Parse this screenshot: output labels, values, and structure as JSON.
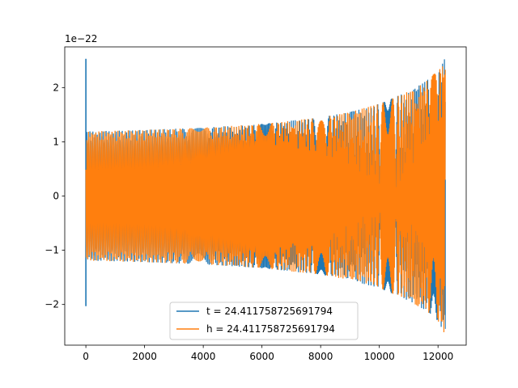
{
  "chart_data": {
    "type": "line",
    "title": "",
    "xlabel": "",
    "ylabel": "",
    "y_offset_text": "1e−22",
    "xlim": [
      -720,
      12960
    ],
    "ylim": [
      -2.75,
      2.75
    ],
    "x_ticks": [
      0,
      2000,
      4000,
      6000,
      8000,
      10000,
      12000
    ],
    "x_tick_labels": [
      "0",
      "2000",
      "4000",
      "6000",
      "8000",
      "10000",
      "12000"
    ],
    "y_ticks": [
      -2,
      -1,
      0,
      1,
      2
    ],
    "y_tick_labels": [
      "−2",
      "−1",
      "0",
      "1",
      "2"
    ],
    "grid": false,
    "legend_position": "lower-center",
    "series": [
      {
        "name": "t = 24.411758725691794",
        "color": "#1f77b4",
        "description_points": {
          "spike_x": 0,
          "spike_ymax": 2.53,
          "spike_ymin": -2.03
        }
      },
      {
        "name": "h = 24.411758725691794",
        "color": "#ff7f0e",
        "envelope": {
          "x": [
            0,
            2000,
            4000,
            6000,
            8000,
            9000,
            10000,
            11000,
            11600,
            12000,
            12250
          ],
          "amplitude": [
            1.19,
            1.22,
            1.26,
            1.33,
            1.45,
            1.55,
            1.7,
            1.93,
            2.12,
            2.32,
            2.56
          ]
        },
        "end_x": 12250
      }
    ]
  }
}
